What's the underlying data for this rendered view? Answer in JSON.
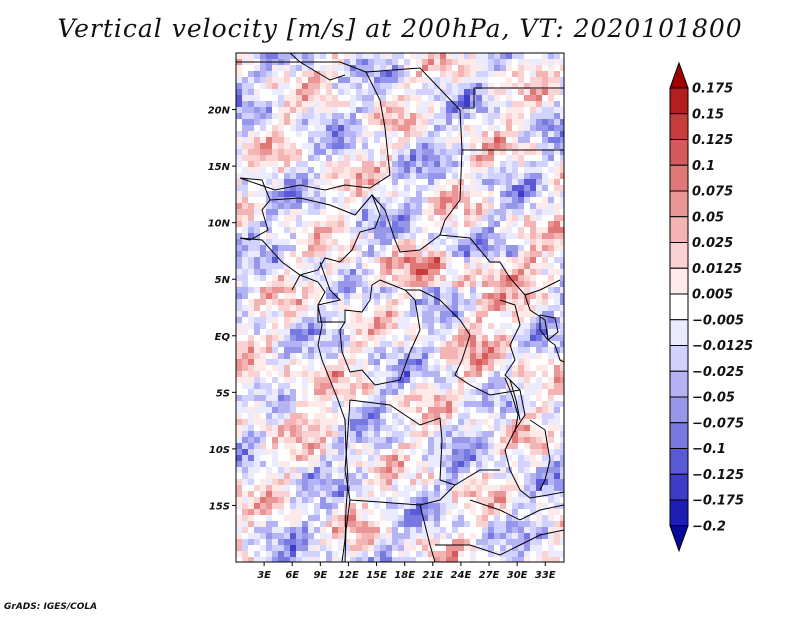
{
  "chart_data": {
    "type": "heatmap",
    "title": "Vertical velocity [m/s] at 200hPa, VT: 2020101800",
    "variable": "Vertical velocity",
    "units": "m/s",
    "level": "200hPa",
    "valid_time": "2020101800",
    "xlim": [
      0,
      35
    ],
    "ylim": [
      -20,
      25
    ],
    "x_ticks": [
      {
        "value": 3,
        "label": "3E"
      },
      {
        "value": 6,
        "label": "6E"
      },
      {
        "value": 9,
        "label": "9E"
      },
      {
        "value": 12,
        "label": "12E"
      },
      {
        "value": 15,
        "label": "15E"
      },
      {
        "value": 18,
        "label": "18E"
      },
      {
        "value": 21,
        "label": "21E"
      },
      {
        "value": 24,
        "label": "24E"
      },
      {
        "value": 27,
        "label": "27E"
      },
      {
        "value": 30,
        "label": "30E"
      },
      {
        "value": 33,
        "label": "33E"
      }
    ],
    "y_ticks": [
      {
        "value": 20,
        "label": "20N"
      },
      {
        "value": 15,
        "label": "15N"
      },
      {
        "value": 10,
        "label": "10N"
      },
      {
        "value": 5,
        "label": "5N"
      },
      {
        "value": 0,
        "label": "EQ"
      },
      {
        "value": -5,
        "label": "5S"
      },
      {
        "value": -10,
        "label": "10S"
      },
      {
        "value": -15,
        "label": "15S"
      }
    ],
    "colorbar": {
      "labels": [
        "0.175",
        "0.15",
        "0.125",
        "0.1",
        "0.075",
        "0.05",
        "0.025",
        "0.0125",
        "0.005",
        "−0.005",
        "−0.0125",
        "−0.025",
        "−0.05",
        "−0.075",
        "−0.1",
        "−0.125",
        "−0.175",
        "−0.2"
      ],
      "colors": [
        "#a00000",
        "#b41e1e",
        "#c83c3c",
        "#d75a5a",
        "#e17878",
        "#eb9696",
        "#f5b4b4",
        "#fad2d2",
        "#ffeaea",
        "#ffffff",
        "#ebebff",
        "#d2d2ff",
        "#b4b4f5",
        "#9696eb",
        "#7878e1",
        "#5a5ad7",
        "#3c3cc8",
        "#1e1eb4",
        "#0a0a9a"
      ]
    },
    "pattern_seed": 20201018
  },
  "footer": "GrADS: IGES/COLA"
}
